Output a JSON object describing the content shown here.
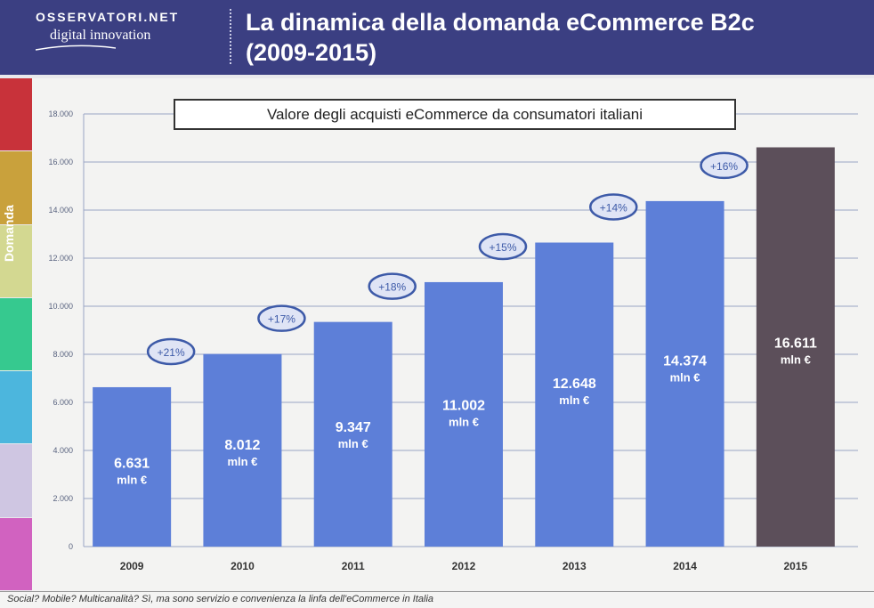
{
  "header": {
    "logo_top": "OSSERVATORI.NET",
    "logo_bottom": "digital innovation",
    "title_line1": "La dinamica della domanda eCommerce B2c",
    "title_line2": "(2009-2015)"
  },
  "sidebar": {
    "label": "Domanda",
    "colors": [
      "#c8323a",
      "#c9a13c",
      "#d3d891",
      "#36c98f",
      "#4cb6dd",
      "#cfc6e2",
      "#d162c0"
    ]
  },
  "footer": {
    "text": "Social? Mobile? Multicanalità? Sì, ma sono servizio e convenienza la linfa dell'eCommerce in Italia"
  },
  "colors": {
    "bar": "#5d7fd8",
    "bar_last": "#5c4f5a",
    "grid": "#9aa4c4"
  },
  "chart_data": {
    "type": "bar",
    "title": "Valore degli acquisti eCommerce da consumatori italiani",
    "categories": [
      "2009",
      "2010",
      "2011",
      "2012",
      "2013",
      "2014",
      "2015"
    ],
    "values": [
      6631,
      8012,
      9347,
      11002,
      12648,
      14374,
      16611
    ],
    "value_labels": [
      "6.631",
      "8.012",
      "9.347",
      "11.002",
      "12.648",
      "14.374",
      "16.611"
    ],
    "unit_label": "mln €",
    "growth_labels": [
      "+21%",
      "+17%",
      "+18%",
      "+15%",
      "+14%",
      "+16%"
    ],
    "y_ticks": [
      0,
      2000,
      4000,
      6000,
      8000,
      10000,
      12000,
      14000,
      16000,
      18000
    ],
    "y_tick_labels": [
      "0",
      "2.000",
      "4.000",
      "6.000",
      "8.000",
      "10.000",
      "12.000",
      "14.000",
      "16.000",
      "18.000"
    ],
    "ylim": [
      0,
      18000
    ],
    "grid": true,
    "xlabel": "",
    "ylabel": ""
  }
}
